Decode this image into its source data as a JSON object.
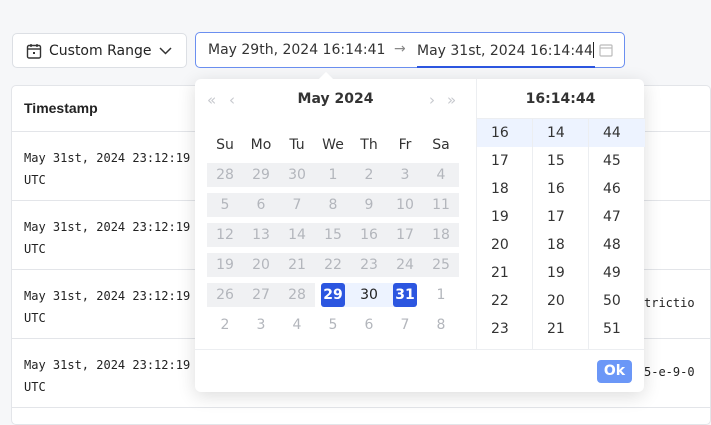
{
  "range_select": {
    "label": "Custom Range",
    "icon": "calendar-icon"
  },
  "picker": {
    "start": "May 29th, 2024 16:14:41",
    "arrow": "→",
    "end": "May 31st, 2024 16:14:44"
  },
  "table": {
    "header": "Timestamp",
    "rows": [
      {
        "ts1": "May 31st, 2024 23:12:19",
        "ts2": "UTC",
        "extra": ""
      },
      {
        "ts1": "May 31st, 2024 23:12:19",
        "ts2": "UTC",
        "extra": ""
      },
      {
        "ts1": "May 31st, 2024 23:12:19",
        "ts2": "UTC",
        "extra": "trictio"
      },
      {
        "ts1": "May 31st, 2024 23:12:19",
        "ts2": "UTC",
        "extra": "5-e-9-0"
      }
    ]
  },
  "calendar": {
    "prev_year": "«",
    "prev_month": "‹",
    "next_month": "›",
    "next_year": "»",
    "title": "May  2024",
    "weekdays": [
      "Su",
      "Mo",
      "Tu",
      "We",
      "Th",
      "Fr",
      "Sa"
    ],
    "weeks": [
      [
        "28",
        "29",
        "30",
        "1",
        "2",
        "3",
        "4"
      ],
      [
        "5",
        "6",
        "7",
        "8",
        "9",
        "10",
        "11"
      ],
      [
        "12",
        "13",
        "14",
        "15",
        "16",
        "17",
        "18"
      ],
      [
        "19",
        "20",
        "21",
        "22",
        "23",
        "24",
        "25"
      ],
      [
        "26",
        "27",
        "28",
        "29",
        "30",
        "31",
        "1"
      ],
      [
        "2",
        "3",
        "4",
        "5",
        "6",
        "7",
        "8"
      ]
    ],
    "range_start": "29",
    "range_end": "31"
  },
  "time": {
    "title": "16:14:44",
    "hours": [
      "16",
      "17",
      "18",
      "19",
      "20",
      "21",
      "22",
      "23"
    ],
    "minutes": [
      "14",
      "15",
      "16",
      "17",
      "18",
      "19",
      "20",
      "21"
    ],
    "seconds": [
      "44",
      "45",
      "46",
      "47",
      "48",
      "49",
      "50",
      "51"
    ]
  },
  "ok_label": "Ok",
  "colors": {
    "accent": "#2c56e0",
    "ok": "#6b97f7",
    "range_bg": "#edf3ff"
  }
}
